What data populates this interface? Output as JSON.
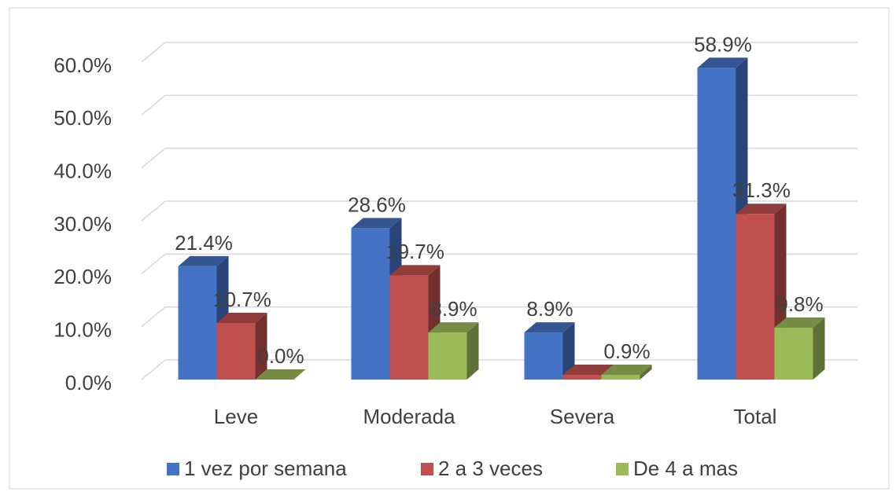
{
  "chart_data": {
    "type": "bar3d",
    "categories": [
      "Leve",
      "Moderada",
      "Severa",
      "Total"
    ],
    "series": [
      {
        "name": "1 vez por semana",
        "color": "#4472c4",
        "values": [
          21.4,
          28.6,
          8.9,
          58.9
        ],
        "value_labels": [
          "21.4%",
          "28.6%",
          "8.9%",
          "58.9%"
        ]
      },
      {
        "name": "2 a 3 veces",
        "color": "#c0504d",
        "values": [
          10.7,
          19.7,
          0.9,
          31.3
        ],
        "value_labels": [
          "10.7%",
          "19.7%",
          null,
          "31.3%"
        ]
      },
      {
        "name": "De 4 a mas",
        "color": "#9bbb59",
        "values": [
          0.0,
          8.9,
          0.9,
          9.8
        ],
        "value_labels": [
          "0.0%",
          "8.9%",
          "0.9%",
          "9.8%"
        ]
      }
    ],
    "ylim": [
      0,
      60
    ],
    "yticks": [
      {
        "value": 0,
        "label": "0.0%"
      },
      {
        "value": 10,
        "label": "10.0%"
      },
      {
        "value": 20,
        "label": "20.0%"
      },
      {
        "value": 30,
        "label": "30.0%"
      },
      {
        "value": 40,
        "label": "40.0%"
      },
      {
        "value": 50,
        "label": "50.0%"
      },
      {
        "value": 60,
        "label": "60.0%"
      }
    ],
    "grid": true,
    "legend": "bottom"
  }
}
